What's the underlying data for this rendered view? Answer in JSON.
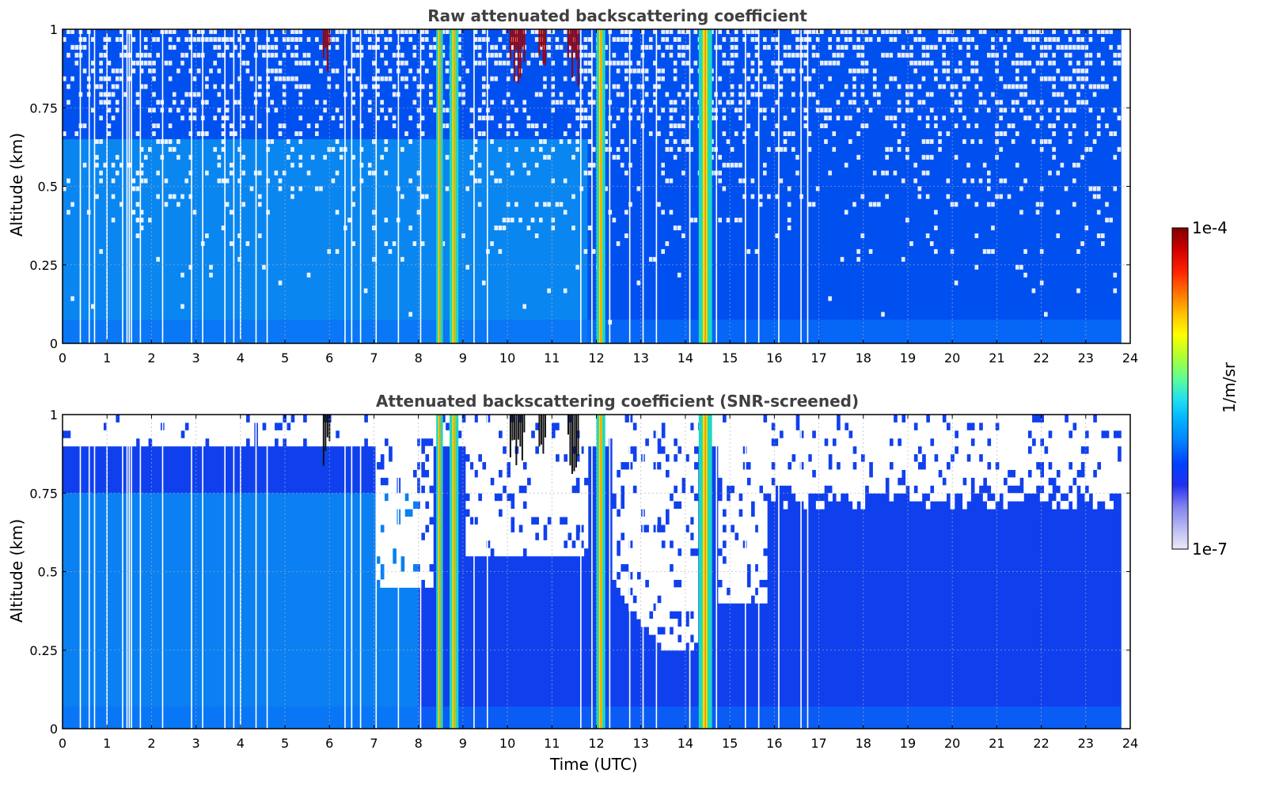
{
  "chart_data": [
    {
      "type": "heatmap",
      "title": "Raw attenuated backscattering coefficient",
      "xlabel": "",
      "ylabel": "Altitude (km)",
      "xlim": [
        0,
        24
      ],
      "ylim": [
        0,
        1
      ],
      "xticks": [
        "0",
        "1",
        "2",
        "3",
        "4",
        "5",
        "6",
        "7",
        "8",
        "9",
        "10",
        "11",
        "12",
        "13",
        "14",
        "15",
        "16",
        "17",
        "18",
        "19",
        "20",
        "21",
        "22",
        "23",
        "24"
      ],
      "yticks": [
        "0",
        "0.25",
        "0.5",
        "0.75",
        "1"
      ],
      "grid": true,
      "data_end_hour": 23.8,
      "features": {
        "bright_bands_hours": [
          [
            8.4,
            8.55
          ],
          [
            8.7,
            8.9
          ],
          [
            12.0,
            12.2
          ],
          [
            14.3,
            14.6
          ]
        ],
        "high_cloud_hours": [
          [
            5.85,
            6.0
          ],
          [
            10.05,
            10.4
          ],
          [
            10.7,
            10.85
          ],
          [
            11.35,
            11.6
          ]
        ]
      }
    },
    {
      "type": "heatmap",
      "title": "Attenuated backscattering coefficient (SNR-screened)",
      "xlabel": "Time (UTC)",
      "ylabel": "Altitude (km)",
      "xlim": [
        0,
        24
      ],
      "ylim": [
        0,
        1
      ],
      "xticks": [
        "0",
        "1",
        "2",
        "3",
        "4",
        "5",
        "6",
        "7",
        "8",
        "9",
        "10",
        "11",
        "12",
        "13",
        "14",
        "15",
        "16",
        "17",
        "18",
        "19",
        "20",
        "21",
        "22",
        "23",
        "24"
      ],
      "yticks": [
        "0",
        "0.25",
        "0.5",
        "0.75",
        "1"
      ],
      "grid": true,
      "data_end_hour": 23.8
    }
  ],
  "colorbar": {
    "label": "1/m/sr",
    "max_label": "1e-4",
    "min_label": "1e-7",
    "colors": [
      "#ece9f8",
      "#b8b8f0",
      "#8080f0",
      "#2030f0",
      "#0040ff",
      "#0080ff",
      "#00b0ff",
      "#20e0f0",
      "#60ff90",
      "#b0ff30",
      "#ffff00",
      "#ffc000",
      "#ff7000",
      "#ff2000",
      "#d00000",
      "#800000"
    ]
  }
}
